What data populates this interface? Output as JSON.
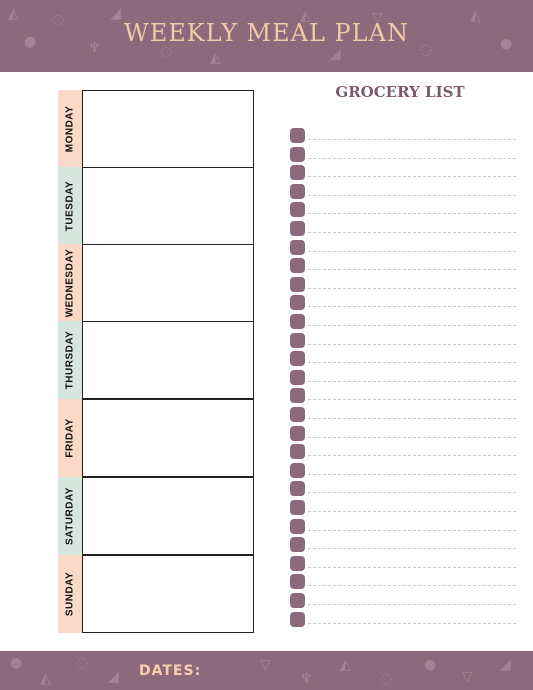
{
  "header": {
    "title": "WEEKLY MEAL PLAN",
    "band_color": "#8c6a7c",
    "title_color": "#f0c9a6",
    "decor_icons": [
      "apple-icon",
      "wine-glass-icon",
      "pizza-icon",
      "cup-icon",
      "carrot-icon",
      "ice-cream-icon"
    ]
  },
  "planner": {
    "days": [
      {
        "label": "MONDAY",
        "tab_color": "peach"
      },
      {
        "label": "TUESDAY",
        "tab_color": "sage"
      },
      {
        "label": "WEDNESDAY",
        "tab_color": "peach"
      },
      {
        "label": "THURSDAY",
        "tab_color": "sage"
      },
      {
        "label": "FRIDAY",
        "tab_color": "peach"
      },
      {
        "label": "SATURDAY",
        "tab_color": "sage"
      },
      {
        "label": "SUNDAY",
        "tab_color": "peach"
      }
    ],
    "colors": {
      "peach": "#fbd9c9",
      "sage": "#d7e5df"
    }
  },
  "grocery": {
    "title": "GROCERY LIST",
    "item_count": 27,
    "checkbox_color": "#8c6a7c"
  },
  "footer": {
    "dates_label": "DATES:"
  }
}
